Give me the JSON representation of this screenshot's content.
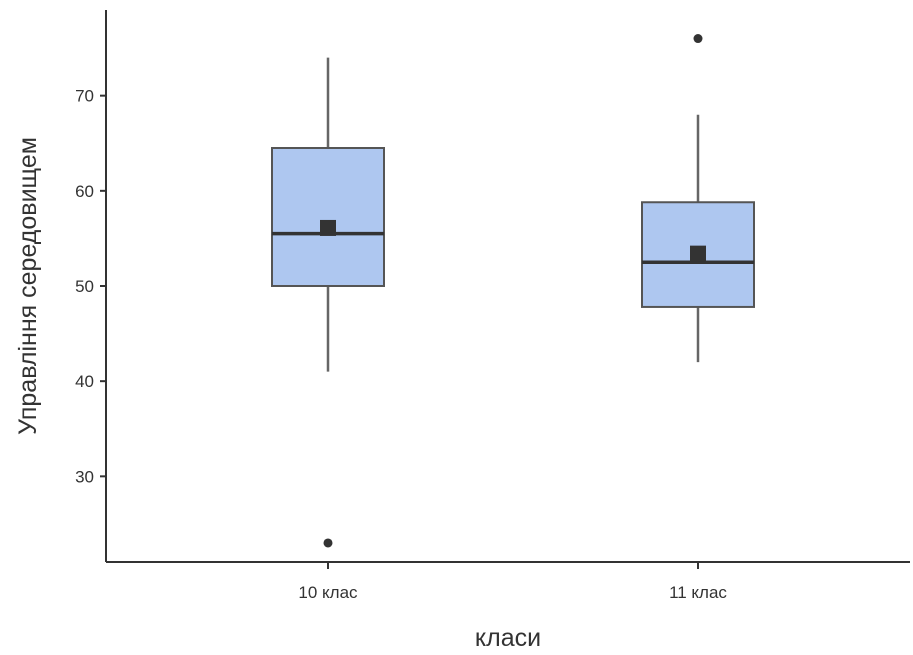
{
  "chart_data": {
    "type": "boxplot",
    "xlabel": "класи",
    "ylabel": "Управління середовищем",
    "ylim": [
      21,
      79
    ],
    "yticks": [
      30,
      40,
      50,
      60,
      70
    ],
    "grid": false,
    "box_color": "#aec7f0",
    "box_edge_color": "#555555",
    "mark_color": "#333333",
    "categories": [
      "10 клас",
      "11 клас"
    ],
    "series": [
      {
        "category": "10 клас",
        "whisker_low": 41,
        "q1": 50,
        "median": 55.5,
        "q3": 64.5,
        "whisker_high": 74,
        "mean": 56.1,
        "outliers": [
          23
        ]
      },
      {
        "category": "11 клас",
        "whisker_low": 42,
        "q1": 47.8,
        "median": 52.5,
        "q3": 58.8,
        "whisker_high": 68,
        "mean": 53.4,
        "outliers": [
          76
        ]
      }
    ]
  }
}
